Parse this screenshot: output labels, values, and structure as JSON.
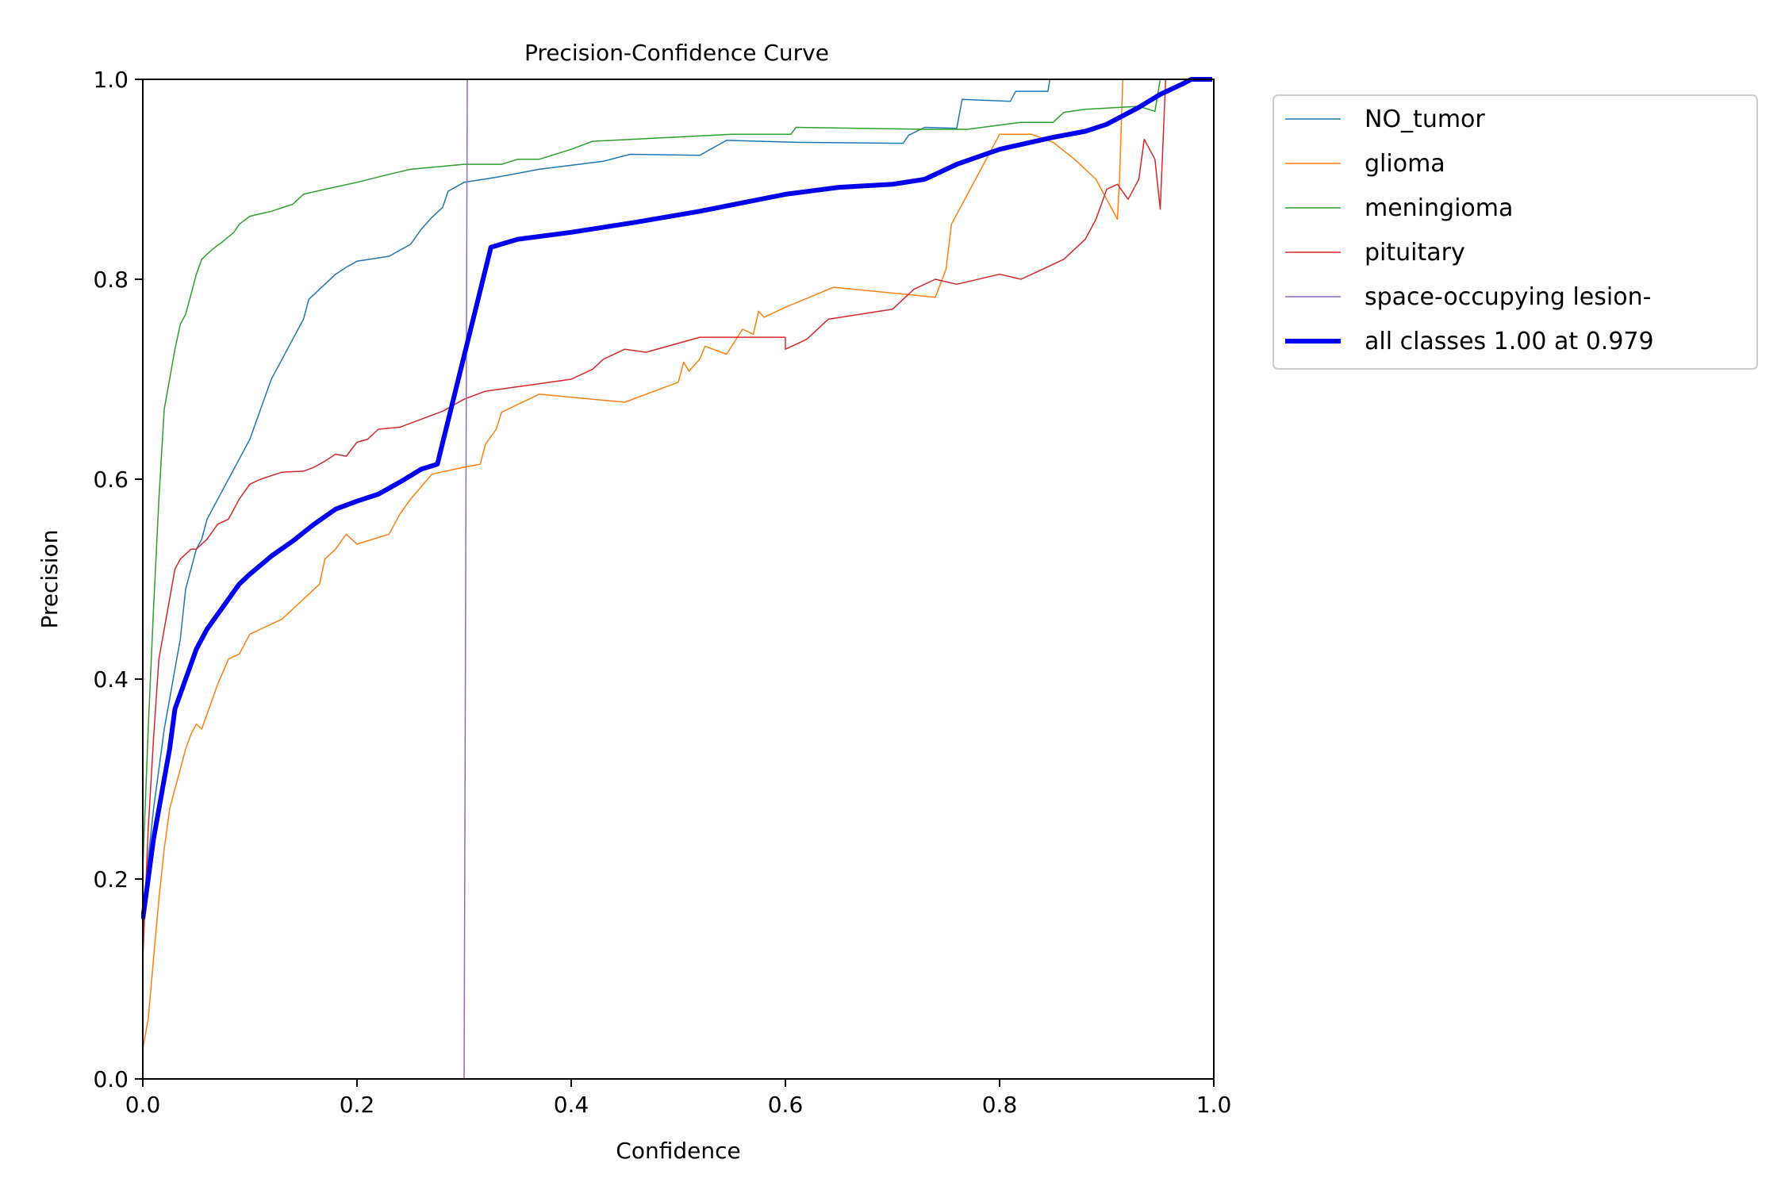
{
  "chart_data": {
    "type": "line",
    "title": "Precision-Confidence Curve",
    "xlabel": "Confidence",
    "ylabel": "Precision",
    "xlim": [
      0,
      1
    ],
    "ylim": [
      0,
      1
    ],
    "xticks": [
      0.0,
      0.2,
      0.4,
      0.6,
      0.8,
      1.0
    ],
    "yticks": [
      0.0,
      0.2,
      0.4,
      0.6,
      0.8,
      1.0
    ],
    "xtick_labels": [
      "0.0",
      "0.2",
      "0.4",
      "0.6",
      "0.8",
      "1.0"
    ],
    "ytick_labels": [
      "0.0",
      "0.2",
      "0.4",
      "0.6",
      "0.8",
      "1.0"
    ],
    "grid": false,
    "legend_position": "outside-top-right",
    "series": [
      {
        "name": "NO_tumor",
        "color": "#1f77b4",
        "width": 1.5,
        "points": [
          [
            0.0,
            0.15
          ],
          [
            0.005,
            0.22
          ],
          [
            0.01,
            0.27
          ],
          [
            0.015,
            0.31
          ],
          [
            0.02,
            0.35
          ],
          [
            0.025,
            0.38
          ],
          [
            0.03,
            0.41
          ],
          [
            0.035,
            0.44
          ],
          [
            0.04,
            0.49
          ],
          [
            0.05,
            0.53
          ],
          [
            0.055,
            0.54
          ],
          [
            0.06,
            0.56
          ],
          [
            0.065,
            0.57
          ],
          [
            0.07,
            0.58
          ],
          [
            0.08,
            0.6
          ],
          [
            0.085,
            0.61
          ],
          [
            0.09,
            0.62
          ],
          [
            0.1,
            0.64
          ],
          [
            0.11,
            0.67
          ],
          [
            0.12,
            0.7
          ],
          [
            0.13,
            0.72
          ],
          [
            0.14,
            0.74
          ],
          [
            0.15,
            0.76
          ],
          [
            0.155,
            0.78
          ],
          [
            0.16,
            0.785
          ],
          [
            0.17,
            0.795
          ],
          [
            0.18,
            0.805
          ],
          [
            0.19,
            0.812
          ],
          [
            0.2,
            0.818
          ],
          [
            0.23,
            0.823
          ],
          [
            0.25,
            0.835
          ],
          [
            0.26,
            0.85
          ],
          [
            0.27,
            0.862
          ],
          [
            0.28,
            0.872
          ],
          [
            0.285,
            0.888
          ],
          [
            0.3,
            0.897
          ],
          [
            0.33,
            0.902
          ],
          [
            0.37,
            0.91
          ],
          [
            0.43,
            0.918
          ],
          [
            0.455,
            0.925
          ],
          [
            0.52,
            0.924
          ],
          [
            0.545,
            0.939
          ],
          [
            0.61,
            0.937
          ],
          [
            0.71,
            0.936
          ],
          [
            0.715,
            0.944
          ],
          [
            0.73,
            0.952
          ],
          [
            0.76,
            0.951
          ],
          [
            0.765,
            0.98
          ],
          [
            0.81,
            0.978
          ],
          [
            0.815,
            0.988
          ],
          [
            0.845,
            0.988
          ],
          [
            0.847,
            1.0
          ]
        ]
      },
      {
        "name": "glioma",
        "color": "#ff7f0e",
        "width": 1.5,
        "points": [
          [
            0.0,
            0.03
          ],
          [
            0.005,
            0.06
          ],
          [
            0.01,
            0.12
          ],
          [
            0.015,
            0.18
          ],
          [
            0.02,
            0.23
          ],
          [
            0.025,
            0.27
          ],
          [
            0.03,
            0.29
          ],
          [
            0.035,
            0.31
          ],
          [
            0.04,
            0.33
          ],
          [
            0.045,
            0.345
          ],
          [
            0.05,
            0.355
          ],
          [
            0.055,
            0.35
          ],
          [
            0.06,
            0.365
          ],
          [
            0.065,
            0.38
          ],
          [
            0.07,
            0.395
          ],
          [
            0.08,
            0.42
          ],
          [
            0.09,
            0.425
          ],
          [
            0.095,
            0.435
          ],
          [
            0.1,
            0.445
          ],
          [
            0.11,
            0.45
          ],
          [
            0.13,
            0.46
          ],
          [
            0.15,
            0.48
          ],
          [
            0.165,
            0.495
          ],
          [
            0.17,
            0.52
          ],
          [
            0.18,
            0.53
          ],
          [
            0.19,
            0.545
          ],
          [
            0.2,
            0.535
          ],
          [
            0.23,
            0.545
          ],
          [
            0.24,
            0.565
          ],
          [
            0.25,
            0.58
          ],
          [
            0.27,
            0.605
          ],
          [
            0.3,
            0.612
          ],
          [
            0.315,
            0.615
          ],
          [
            0.32,
            0.635
          ],
          [
            0.33,
            0.65
          ],
          [
            0.335,
            0.667
          ],
          [
            0.37,
            0.685
          ],
          [
            0.45,
            0.677
          ],
          [
            0.5,
            0.697
          ],
          [
            0.505,
            0.717
          ],
          [
            0.51,
            0.708
          ],
          [
            0.52,
            0.72
          ],
          [
            0.525,
            0.733
          ],
          [
            0.545,
            0.725
          ],
          [
            0.56,
            0.75
          ],
          [
            0.57,
            0.745
          ],
          [
            0.575,
            0.768
          ],
          [
            0.58,
            0.762
          ],
          [
            0.6,
            0.772
          ],
          [
            0.645,
            0.792
          ],
          [
            0.74,
            0.782
          ],
          [
            0.75,
            0.81
          ],
          [
            0.755,
            0.855
          ],
          [
            0.8,
            0.945
          ],
          [
            0.83,
            0.945
          ],
          [
            0.85,
            0.937
          ],
          [
            0.87,
            0.92
          ],
          [
            0.89,
            0.9
          ],
          [
            0.9,
            0.88
          ],
          [
            0.91,
            0.86
          ],
          [
            0.912,
            0.9
          ],
          [
            0.915,
            1.0
          ]
        ]
      },
      {
        "name": "meningioma",
        "color": "#2ca02c",
        "width": 1.5,
        "points": [
          [
            0.0,
            0.21
          ],
          [
            0.005,
            0.35
          ],
          [
            0.01,
            0.47
          ],
          [
            0.015,
            0.58
          ],
          [
            0.02,
            0.67
          ],
          [
            0.025,
            0.7
          ],
          [
            0.03,
            0.73
          ],
          [
            0.035,
            0.755
          ],
          [
            0.04,
            0.765
          ],
          [
            0.045,
            0.785
          ],
          [
            0.05,
            0.805
          ],
          [
            0.055,
            0.82
          ],
          [
            0.065,
            0.83
          ],
          [
            0.075,
            0.838
          ],
          [
            0.085,
            0.847
          ],
          [
            0.09,
            0.855
          ],
          [
            0.1,
            0.863
          ],
          [
            0.12,
            0.868
          ],
          [
            0.14,
            0.875
          ],
          [
            0.15,
            0.885
          ],
          [
            0.17,
            0.89
          ],
          [
            0.2,
            0.897
          ],
          [
            0.23,
            0.905
          ],
          [
            0.25,
            0.91
          ],
          [
            0.3,
            0.915
          ],
          [
            0.335,
            0.915
          ],
          [
            0.35,
            0.92
          ],
          [
            0.37,
            0.92
          ],
          [
            0.4,
            0.93
          ],
          [
            0.42,
            0.938
          ],
          [
            0.55,
            0.945
          ],
          [
            0.605,
            0.945
          ],
          [
            0.61,
            0.952
          ],
          [
            0.73,
            0.95
          ],
          [
            0.77,
            0.95
          ],
          [
            0.82,
            0.957
          ],
          [
            0.85,
            0.957
          ],
          [
            0.86,
            0.967
          ],
          [
            0.88,
            0.97
          ],
          [
            0.93,
            0.973
          ],
          [
            0.945,
            0.968
          ],
          [
            0.95,
            1.0
          ]
        ]
      },
      {
        "name": "pituitary",
        "color": "#d62728",
        "width": 1.5,
        "points": [
          [
            0.0,
            0.12
          ],
          [
            0.005,
            0.25
          ],
          [
            0.01,
            0.34
          ],
          [
            0.015,
            0.42
          ],
          [
            0.02,
            0.45
          ],
          [
            0.025,
            0.48
          ],
          [
            0.03,
            0.51
          ],
          [
            0.035,
            0.52
          ],
          [
            0.045,
            0.53
          ],
          [
            0.05,
            0.53
          ],
          [
            0.06,
            0.54
          ],
          [
            0.07,
            0.555
          ],
          [
            0.08,
            0.56
          ],
          [
            0.09,
            0.58
          ],
          [
            0.1,
            0.595
          ],
          [
            0.11,
            0.6
          ],
          [
            0.13,
            0.607
          ],
          [
            0.15,
            0.608
          ],
          [
            0.16,
            0.612
          ],
          [
            0.17,
            0.618
          ],
          [
            0.18,
            0.625
          ],
          [
            0.19,
            0.623
          ],
          [
            0.2,
            0.637
          ],
          [
            0.21,
            0.64
          ],
          [
            0.22,
            0.65
          ],
          [
            0.24,
            0.652
          ],
          [
            0.26,
            0.66
          ],
          [
            0.28,
            0.668
          ],
          [
            0.3,
            0.68
          ],
          [
            0.32,
            0.688
          ],
          [
            0.36,
            0.694
          ],
          [
            0.4,
            0.7
          ],
          [
            0.42,
            0.71
          ],
          [
            0.43,
            0.72
          ],
          [
            0.45,
            0.73
          ],
          [
            0.47,
            0.727
          ],
          [
            0.52,
            0.742
          ],
          [
            0.55,
            0.742
          ],
          [
            0.6,
            0.742
          ],
          [
            0.6,
            0.73
          ],
          [
            0.61,
            0.735
          ],
          [
            0.62,
            0.74
          ],
          [
            0.64,
            0.76
          ],
          [
            0.7,
            0.77
          ],
          [
            0.72,
            0.79
          ],
          [
            0.74,
            0.8
          ],
          [
            0.76,
            0.795
          ],
          [
            0.8,
            0.805
          ],
          [
            0.82,
            0.8
          ],
          [
            0.84,
            0.81
          ],
          [
            0.86,
            0.82
          ],
          [
            0.88,
            0.84
          ],
          [
            0.89,
            0.86
          ],
          [
            0.9,
            0.89
          ],
          [
            0.91,
            0.895
          ],
          [
            0.92,
            0.88
          ],
          [
            0.93,
            0.9
          ],
          [
            0.935,
            0.94
          ],
          [
            0.945,
            0.92
          ],
          [
            0.95,
            0.87
          ],
          [
            0.955,
            1.0
          ]
        ]
      },
      {
        "name": "space-occupying lesion-",
        "color": "#9467bd",
        "width": 1.5,
        "points": [
          [
            0.0,
            0.0
          ],
          [
            0.3,
            0.0
          ],
          [
            0.303,
            1.0
          ]
        ]
      },
      {
        "name": "all classes 1.00 at 0.979",
        "color": "#0000ee",
        "width": 6,
        "points": [
          [
            0.0,
            0.16
          ],
          [
            0.005,
            0.2
          ],
          [
            0.01,
            0.24
          ],
          [
            0.015,
            0.27
          ],
          [
            0.02,
            0.3
          ],
          [
            0.025,
            0.33
          ],
          [
            0.03,
            0.37
          ],
          [
            0.04,
            0.4
          ],
          [
            0.05,
            0.43
          ],
          [
            0.06,
            0.45
          ],
          [
            0.07,
            0.465
          ],
          [
            0.08,
            0.48
          ],
          [
            0.09,
            0.495
          ],
          [
            0.1,
            0.505
          ],
          [
            0.12,
            0.523
          ],
          [
            0.14,
            0.538
          ],
          [
            0.16,
            0.555
          ],
          [
            0.18,
            0.57
          ],
          [
            0.2,
            0.578
          ],
          [
            0.22,
            0.585
          ],
          [
            0.24,
            0.597
          ],
          [
            0.26,
            0.61
          ],
          [
            0.275,
            0.615
          ],
          [
            0.325,
            0.832
          ],
          [
            0.35,
            0.84
          ],
          [
            0.4,
            0.847
          ],
          [
            0.46,
            0.857
          ],
          [
            0.52,
            0.868
          ],
          [
            0.6,
            0.885
          ],
          [
            0.65,
            0.892
          ],
          [
            0.7,
            0.895
          ],
          [
            0.73,
            0.9
          ],
          [
            0.76,
            0.915
          ],
          [
            0.8,
            0.93
          ],
          [
            0.85,
            0.942
          ],
          [
            0.88,
            0.948
          ],
          [
            0.9,
            0.955
          ],
          [
            0.93,
            0.972
          ],
          [
            0.95,
            0.985
          ],
          [
            0.97,
            0.995
          ],
          [
            0.979,
            1.0
          ],
          [
            1.0,
            1.0
          ]
        ]
      }
    ]
  }
}
